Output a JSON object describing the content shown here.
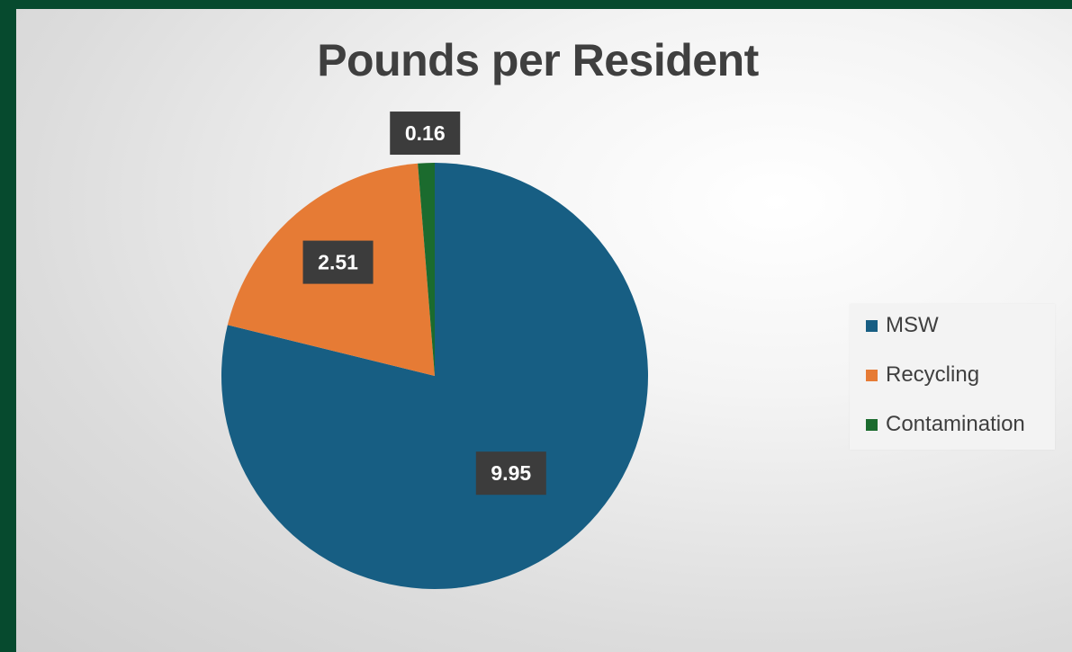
{
  "chart_data": {
    "type": "pie",
    "title": "Pounds per Resident",
    "categories": [
      "MSW",
      "Recycling",
      "Contamination"
    ],
    "values": [
      9.95,
      2.51,
      0.16
    ],
    "data_labels": [
      "9.95",
      "2.51",
      "0.16"
    ],
    "colors": [
      "#175e83",
      "#e67b35",
      "#1b6b2e"
    ],
    "legend_position": "right"
  },
  "colors": {
    "frame": "#064a2e",
    "label_bg": "#3c3c3c",
    "label_text": "#ffffff",
    "title_text": "#3f3f3f"
  }
}
